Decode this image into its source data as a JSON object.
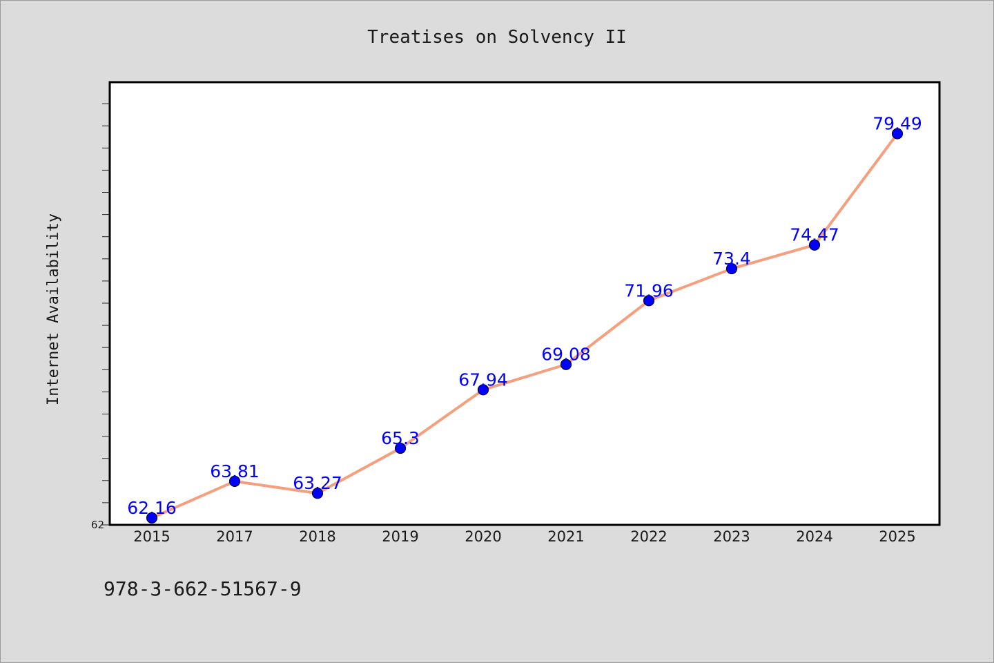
{
  "colors": {
    "background": "#dcdcdc",
    "plot_background": "#ffffff",
    "line": "#f4a07e",
    "marker_fill": "#0000ff",
    "data_label": "#0000ff"
  },
  "footer": {
    "text": "978-3-662-51567-9"
  },
  "chart_data": {
    "type": "line",
    "title": "Treatises on Solvency II",
    "xlabel": "",
    "ylabel": "Internet Availability",
    "categories": [
      "2015",
      "2017",
      "2018",
      "2019",
      "2020",
      "2021",
      "2022",
      "2023",
      "2024",
      "2025"
    ],
    "series": [
      {
        "values": [
          62.16,
          63.81,
          63.27,
          65.3,
          67.94,
          69.08,
          71.96,
          73.4,
          74.47,
          79.49
        ],
        "labels": [
          "62.16",
          "63.81",
          "63.27",
          "65.3",
          "67.94",
          "69.08",
          "71.96",
          "73.4",
          "74.47",
          "79.49"
        ]
      }
    ],
    "ylim": [
      62,
      82
    ],
    "y_tick_labels": [
      "62"
    ],
    "y_minor_step": 1,
    "grid": false,
    "markers": "circle",
    "legend": "none"
  }
}
